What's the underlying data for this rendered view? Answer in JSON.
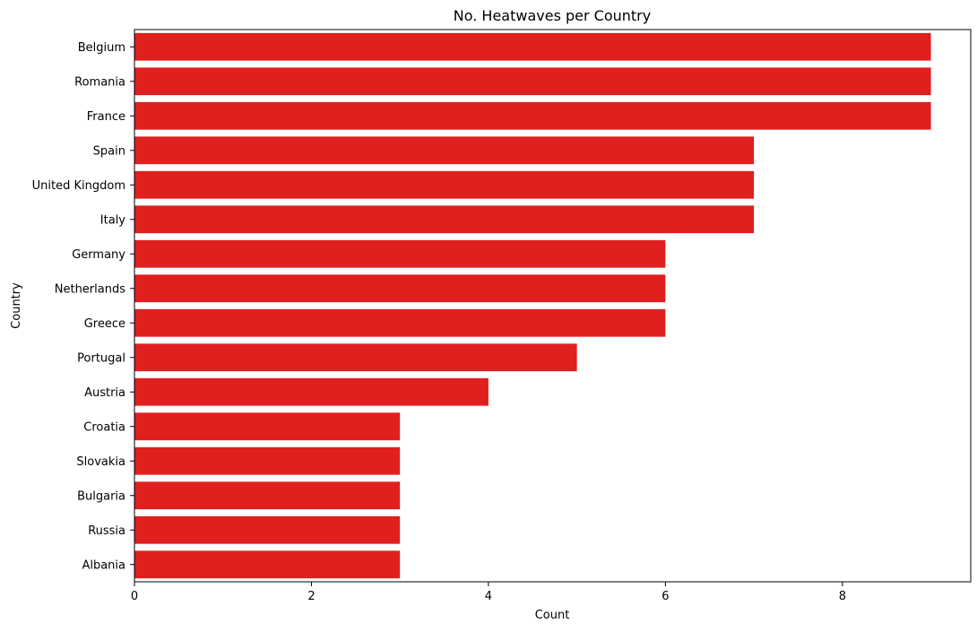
{
  "chart_data": {
    "type": "bar",
    "orientation": "horizontal",
    "title": "No. Heatwaves per Country",
    "xlabel": "Count",
    "ylabel": "Country",
    "categories": [
      "Belgium",
      "Romania",
      "France",
      "Spain",
      "United Kingdom",
      "Italy",
      "Germany",
      "Netherlands",
      "Greece",
      "Portugal",
      "Austria",
      "Croatia",
      "Slovakia",
      "Bulgaria",
      "Russia",
      "Albania"
    ],
    "values": [
      9,
      9,
      9,
      7,
      7,
      7,
      6,
      6,
      6,
      5,
      4,
      3,
      3,
      3,
      3,
      3
    ],
    "xlim": [
      0,
      9.45
    ],
    "xticks": [
      0,
      2,
      4,
      6,
      8
    ],
    "grid": false,
    "bar_color": "#e01f1f"
  }
}
